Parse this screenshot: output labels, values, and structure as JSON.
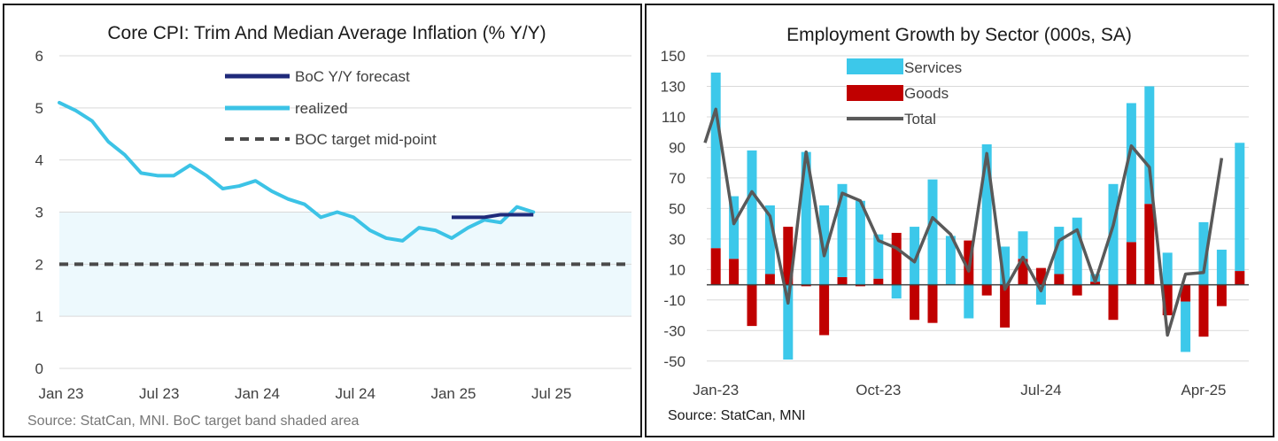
{
  "chart_data": [
    {
      "type": "line",
      "title": "Core CPI: Trim And Median Average Inflation (% Y/Y)",
      "source": "Source:  StatCan, MNI. BoC target band shaded area",
      "ylim": [
        0,
        6
      ],
      "yticks": [
        "0",
        "1",
        "2",
        "3",
        "4",
        "5",
        "6"
      ],
      "xlim": [
        0,
        35
      ],
      "xticks": [
        {
          "i": 0,
          "label": "Jan 23"
        },
        {
          "i": 6,
          "label": "Jul 23"
        },
        {
          "i": 12,
          "label": "Jan 24"
        },
        {
          "i": 18,
          "label": "Jul 24"
        },
        {
          "i": 24,
          "label": "Jan 25"
        },
        {
          "i": 30,
          "label": "Jul 25"
        }
      ],
      "target_band": [
        1,
        3
      ],
      "colors": {
        "forecast": "#1f2a7a",
        "realized": "#3cc3e6",
        "target": "#4a4a4a",
        "band": "#edf9fd",
        "grid": "#d9d9d9"
      },
      "series": [
        {
          "name": "BoC Y/Y forecast",
          "x": [
            24,
            25,
            26,
            27,
            28,
            29
          ],
          "values": [
            2.9,
            2.9,
            2.9,
            2.95,
            2.95,
            2.95
          ]
        },
        {
          "name": "realized",
          "x": [
            0,
            1,
            2,
            3,
            4,
            5,
            6,
            7,
            8,
            9,
            10,
            11,
            12,
            13,
            14,
            15,
            16,
            17,
            18,
            19,
            20,
            21,
            22,
            23,
            24,
            25,
            26,
            27,
            28,
            29
          ],
          "values": [
            5.1,
            4.95,
            4.75,
            4.35,
            4.1,
            3.75,
            3.7,
            3.7,
            3.9,
            3.7,
            3.45,
            3.5,
            3.6,
            3.4,
            3.25,
            3.15,
            2.9,
            3.0,
            2.9,
            2.65,
            2.5,
            2.45,
            2.7,
            2.65,
            2.5,
            2.7,
            2.85,
            2.8,
            3.1,
            3.0
          ]
        },
        {
          "name": "BOC target mid-point",
          "x": [
            0,
            35
          ],
          "values": [
            2,
            2
          ]
        }
      ]
    },
    {
      "type": "bar",
      "title": "Employment Growth by Sector (000s, SA)",
      "source": "Source: StatCan, MNI",
      "ylim": [
        -60,
        150
      ],
      "yticks": [
        150,
        130,
        110,
        90,
        70,
        50,
        30,
        10,
        -10,
        -30,
        -50
      ],
      "xticks": [
        {
          "i": 0,
          "label": "Jan-23"
        },
        {
          "i": 9,
          "label": "Oct-23"
        },
        {
          "i": 18,
          "label": "Jul-24"
        },
        {
          "i": 27,
          "label": "Apr-25"
        }
      ],
      "colors": {
        "services": "#3cc8ea",
        "goods": "#c00000",
        "total": "#595959",
        "grid": "#d9d9d9"
      },
      "series": [
        {
          "name": "Services",
          "values": [
            115,
            41,
            88,
            45,
            -49,
            87,
            52,
            61,
            55,
            29,
            -9,
            38,
            69,
            32,
            -22,
            92,
            25,
            18,
            -13,
            31,
            44,
            5,
            66,
            91,
            77,
            21,
            -33,
            41,
            23,
            84
          ]
        },
        {
          "name": "Goods",
          "values": [
            24,
            17,
            -27,
            7,
            38,
            -1,
            -33,
            5,
            -1,
            4,
            34,
            -23,
            -25,
            0,
            29,
            -7,
            -28,
            17,
            11,
            7,
            -7,
            2,
            -23,
            28,
            53,
            -20,
            -11,
            -34,
            -14,
            9
          ]
        },
        {
          "name": "Total",
          "values": [
            93,
            115,
            40,
            61,
            45,
            -12,
            87,
            19,
            60,
            55,
            29,
            24,
            15,
            44,
            33,
            9,
            86,
            -3,
            18,
            -4,
            29,
            36,
            2,
            39,
            91,
            77,
            -33,
            7,
            8,
            83
          ]
        }
      ]
    }
  ]
}
